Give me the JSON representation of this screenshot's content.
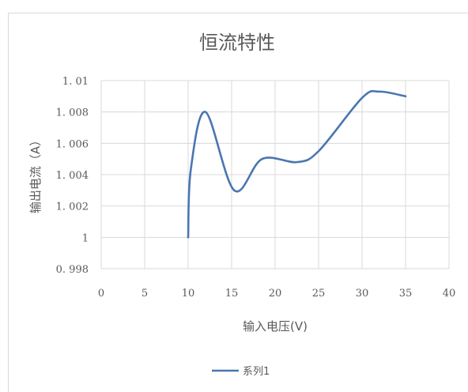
{
  "chart_data": {
    "type": "line",
    "title": "恒流特性",
    "xlabel": "输入电压(V)",
    "ylabel": "输出电流（A）",
    "xlim": [
      0,
      40
    ],
    "ylim": [
      0.998,
      1.01
    ],
    "x_ticks": [
      0,
      5,
      10,
      15,
      20,
      25,
      30,
      35,
      40
    ],
    "y_ticks": [
      0.998,
      1,
      1.002,
      1.004,
      1.006,
      1.008,
      1.01
    ],
    "x_tick_labels": [
      "0",
      "5",
      "10",
      "15",
      "20",
      "25",
      "30",
      "35",
      "40"
    ],
    "y_tick_labels": [
      "0. 998",
      "1",
      "1. 002",
      "1. 004",
      "1. 006",
      "1. 008",
      "1. 01"
    ],
    "grid": true,
    "smooth": true,
    "legend_position": "bottom",
    "series": [
      {
        "name": "系列1",
        "color": "#4a76b0",
        "x": [
          10,
          10.3,
          12,
          15.3,
          18.5,
          22.5,
          25,
          30,
          32,
          35
        ],
        "y": [
          1.0,
          1.0043,
          1.008,
          1.003,
          1.005,
          1.0048,
          1.0055,
          1.0089,
          1.0093,
          1.009
        ]
      }
    ]
  }
}
